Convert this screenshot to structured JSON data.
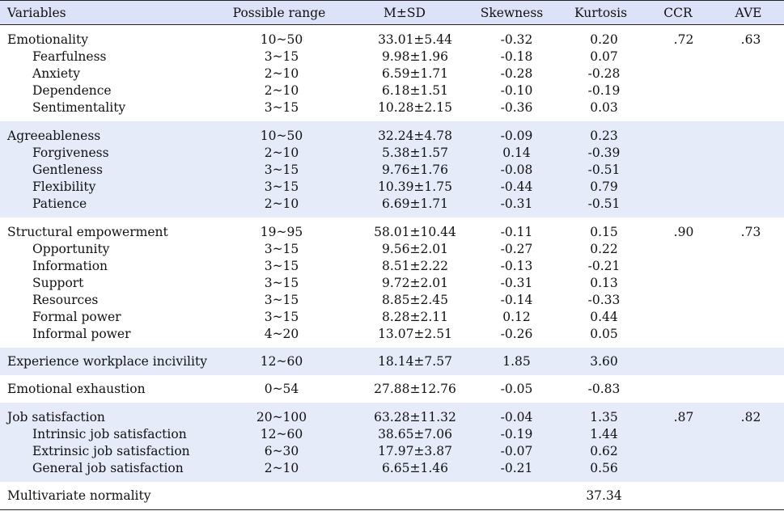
{
  "headers": [
    "Variables",
    "Possible range",
    "M±SD",
    "Skewness",
    "Kurtosis",
    "CCR",
    "AVE"
  ],
  "groups": [
    {
      "shade": false,
      "rows": [
        {
          "variable": "Emotionality",
          "sub": false,
          "range": "10~50",
          "msd": "33.01±5.44",
          "skewness": "-0.32",
          "kurtosis": "0.20",
          "ccr": ".72",
          "ave": ".63"
        },
        {
          "variable": "Fearfulness",
          "sub": true,
          "range": "3~15",
          "msd": "9.98±1.96",
          "skewness": "-0.18",
          "kurtosis": "0.07",
          "ccr": "",
          "ave": ""
        },
        {
          "variable": "Anxiety",
          "sub": true,
          "range": "2~10",
          "msd": "6.59±1.71",
          "skewness": "-0.28",
          "kurtosis": "-0.28",
          "ccr": "",
          "ave": ""
        },
        {
          "variable": "Dependence",
          "sub": true,
          "range": "2~10",
          "msd": "6.18±1.51",
          "skewness": "-0.10",
          "kurtosis": "-0.19",
          "ccr": "",
          "ave": ""
        },
        {
          "variable": "Sentimentality",
          "sub": true,
          "range": "3~15",
          "msd": "10.28±2.15",
          "skewness": "-0.36",
          "kurtosis": "0.03",
          "ccr": "",
          "ave": ""
        }
      ]
    },
    {
      "shade": true,
      "rows": [
        {
          "variable": "Agreeableness",
          "sub": false,
          "range": "10~50",
          "msd": "32.24±4.78",
          "skewness": "-0.09",
          "kurtosis": "0.23",
          "ccr": "",
          "ave": ""
        },
        {
          "variable": "Forgiveness",
          "sub": true,
          "range": "2~10",
          "msd": "5.38±1.57",
          "skewness": "0.14",
          "kurtosis": "-0.39",
          "ccr": "",
          "ave": ""
        },
        {
          "variable": "Gentleness",
          "sub": true,
          "range": "3~15",
          "msd": "9.76±1.76",
          "skewness": "-0.08",
          "kurtosis": "-0.51",
          "ccr": "",
          "ave": ""
        },
        {
          "variable": "Flexibility",
          "sub": true,
          "range": "3~15",
          "msd": "10.39±1.75",
          "skewness": "-0.44",
          "kurtosis": "0.79",
          "ccr": "",
          "ave": ""
        },
        {
          "variable": "Patience",
          "sub": true,
          "range": "2~10",
          "msd": "6.69±1.71",
          "skewness": "-0.31",
          "kurtosis": "-0.51",
          "ccr": "",
          "ave": ""
        }
      ]
    },
    {
      "shade": false,
      "rows": [
        {
          "variable": "Structural empowerment",
          "sub": false,
          "range": "19~95",
          "msd": "58.01±10.44",
          "skewness": "-0.11",
          "kurtosis": "0.15",
          "ccr": ".90",
          "ave": ".73"
        },
        {
          "variable": "Opportunity",
          "sub": true,
          "range": "3~15",
          "msd": "9.56±2.01",
          "skewness": "-0.27",
          "kurtosis": "0.22",
          "ccr": "",
          "ave": ""
        },
        {
          "variable": "Information",
          "sub": true,
          "range": "3~15",
          "msd": "8.51±2.22",
          "skewness": "-0.13",
          "kurtosis": "-0.21",
          "ccr": "",
          "ave": ""
        },
        {
          "variable": "Support",
          "sub": true,
          "range": "3~15",
          "msd": "9.72±2.01",
          "skewness": "-0.31",
          "kurtosis": "0.13",
          "ccr": "",
          "ave": ""
        },
        {
          "variable": "Resources",
          "sub": true,
          "range": "3~15",
          "msd": "8.85±2.45",
          "skewness": "-0.14",
          "kurtosis": "-0.33",
          "ccr": "",
          "ave": ""
        },
        {
          "variable": "Formal power",
          "sub": true,
          "range": "3~15",
          "msd": "8.28±2.11",
          "skewness": "0.12",
          "kurtosis": "0.44",
          "ccr": "",
          "ave": ""
        },
        {
          "variable": "Informal power",
          "sub": true,
          "range": "4~20",
          "msd": "13.07±2.51",
          "skewness": "-0.26",
          "kurtosis": "0.05",
          "ccr": "",
          "ave": ""
        }
      ]
    },
    {
      "shade": true,
      "rows": [
        {
          "variable": "Experience workplace incivility",
          "sub": false,
          "range": "12~60",
          "msd": "18.14±7.57",
          "skewness": "1.85",
          "kurtosis": "3.60",
          "ccr": "",
          "ave": ""
        }
      ]
    },
    {
      "shade": false,
      "rows": [
        {
          "variable": "Emotional exhaustion",
          "sub": false,
          "range": "0~54",
          "msd": "27.88±12.76",
          "skewness": "-0.05",
          "kurtosis": "-0.83",
          "ccr": "",
          "ave": ""
        }
      ]
    },
    {
      "shade": true,
      "rows": [
        {
          "variable": "Job satisfaction",
          "sub": false,
          "range": "20~100",
          "msd": "63.28±11.32",
          "skewness": "-0.04",
          "kurtosis": "1.35",
          "ccr": ".87",
          "ave": ".82"
        },
        {
          "variable": "Intrinsic job satisfaction",
          "sub": true,
          "range": "12~60",
          "msd": "38.65±7.06",
          "skewness": "-0.19",
          "kurtosis": "1.44",
          "ccr": "",
          "ave": ""
        },
        {
          "variable": "Extrinsic job satisfaction",
          "sub": true,
          "range": "6~30",
          "msd": "17.97±3.87",
          "skewness": "-0.07",
          "kurtosis": "0.62",
          "ccr": "",
          "ave": ""
        },
        {
          "variable": "General job satisfaction",
          "sub": true,
          "range": "2~10",
          "msd": "6.65±1.46",
          "skewness": "-0.21",
          "kurtosis": "0.56",
          "ccr": "",
          "ave": ""
        }
      ]
    },
    {
      "shade": false,
      "final": true,
      "rows": [
        {
          "variable": "Multivariate normality",
          "sub": false,
          "range": "",
          "msd": "",
          "skewness": "",
          "kurtosis": "37.34",
          "ccr": "",
          "ave": ""
        }
      ]
    }
  ]
}
